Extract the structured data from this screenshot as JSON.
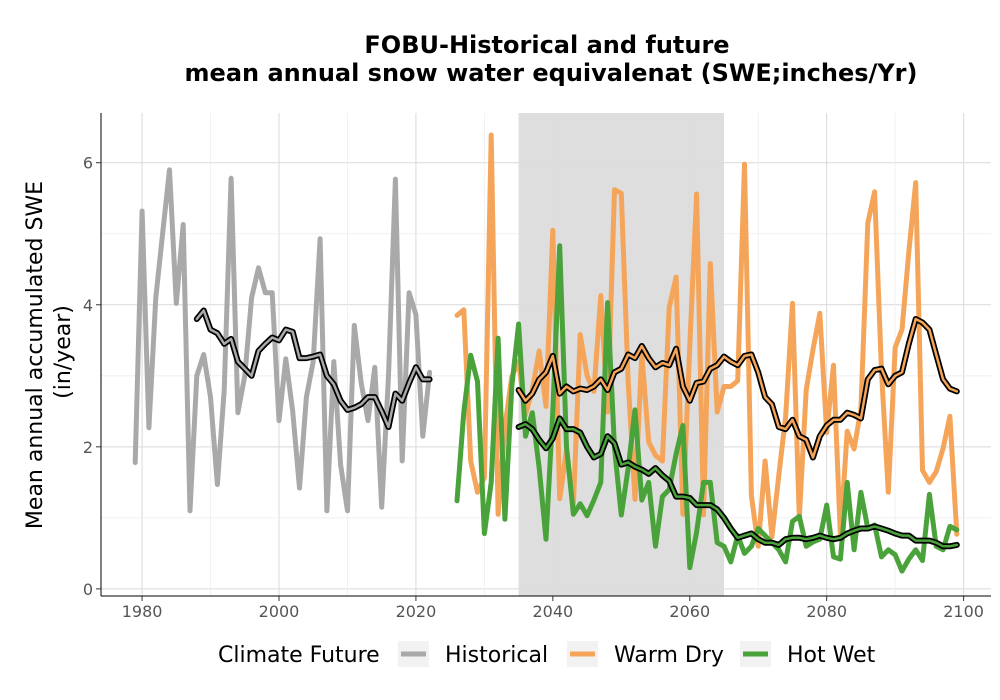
{
  "chart_data": {
    "type": "line",
    "title": [
      "FOBU-Historical and future",
      "mean annual snow water equivalenat (SWE;inches/Yr)"
    ],
    "ylabel": [
      "Mean annual accumulated SWE",
      "(in/year)"
    ],
    "xlabel": "",
    "xlim": [
      1974,
      2104
    ],
    "ylim": [
      -0.1,
      6.7
    ],
    "x_ticks": [
      1980,
      2000,
      2020,
      2040,
      2060,
      2080,
      2100
    ],
    "y_ticks": [
      0,
      2,
      4,
      6
    ],
    "grid": true,
    "shaded_region": {
      "x": [
        2035,
        2065
      ],
      "color": "#dcdcdc"
    },
    "legend": {
      "title": "Climate Future",
      "placement": "bottom",
      "entries": [
        "Historical",
        "Warm Dry",
        "Hot Wet"
      ]
    },
    "series": [
      {
        "name": "Historical",
        "color": "#a9a9a9",
        "x": [
          1979,
          1980,
          1981,
          1982,
          1983,
          1984,
          1985,
          1986,
          1987,
          1988,
          1989,
          1990,
          1991,
          1992,
          1993,
          1994,
          1995,
          1996,
          1997,
          1998,
          1999,
          2000,
          2001,
          2002,
          2003,
          2004,
          2005,
          2006,
          2007,
          2008,
          2009,
          2010,
          2011,
          2012,
          2013,
          2014,
          2015,
          2016,
          2017,
          2018,
          2019,
          2020,
          2021,
          2022
        ],
        "values": [
          1.78,
          5.32,
          2.27,
          4.1,
          5.0,
          5.9,
          4.02,
          5.13,
          1.1,
          3.0,
          3.3,
          2.7,
          1.47,
          2.8,
          5.78,
          2.48,
          3.0,
          4.1,
          4.52,
          4.17,
          4.17,
          2.37,
          3.24,
          2.5,
          1.42,
          2.7,
          3.2,
          4.93,
          1.1,
          3.2,
          1.75,
          1.1,
          3.71,
          2.9,
          2.37,
          3.12,
          1.15,
          3.0,
          5.77,
          1.8,
          4.17,
          3.86,
          2.15,
          3.05
        ]
      },
      {
        "name": "Warm Dry",
        "color": "#f5a55a",
        "x": [
          2026,
          2027,
          2028,
          2029,
          2030,
          2031,
          2032,
          2033,
          2034,
          2035,
          2036,
          2037,
          2038,
          2039,
          2040,
          2041,
          2042,
          2043,
          2044,
          2045,
          2046,
          2047,
          2048,
          2049,
          2050,
          2051,
          2052,
          2053,
          2054,
          2055,
          2056,
          2057,
          2058,
          2059,
          2060,
          2061,
          2062,
          2063,
          2064,
          2065,
          2066,
          2067,
          2068,
          2069,
          2070,
          2071,
          2072,
          2073,
          2074,
          2075,
          2076,
          2077,
          2078,
          2079,
          2080,
          2081,
          2082,
          2083,
          2084,
          2085,
          2086,
          2087,
          2088,
          2089,
          2090,
          2091,
          2092,
          2093,
          2094,
          2095,
          2096,
          2097,
          2098,
          2099
        ],
        "values": [
          3.85,
          3.93,
          1.8,
          1.36,
          1.57,
          6.39,
          1.05,
          2.28,
          2.99,
          3.2,
          2.45,
          2.8,
          3.35,
          2.57,
          5.05,
          1.27,
          1.95,
          1.18,
          3.58,
          3.0,
          2.78,
          4.13,
          2.49,
          5.62,
          5.57,
          2.92,
          1.26,
          3.3,
          2.07,
          1.88,
          1.8,
          3.96,
          4.39,
          1.05,
          3.43,
          5.56,
          1.04,
          4.58,
          2.49,
          2.85,
          2.85,
          2.93,
          5.98,
          1.31,
          0.6,
          1.8,
          0.73,
          1.6,
          2.42,
          4.02,
          1.0,
          2.8,
          3.37,
          3.88,
          2.2,
          3.15,
          0.75,
          2.22,
          1.97,
          2.53,
          5.15,
          5.59,
          3.06,
          1.36,
          3.4,
          3.65,
          4.74,
          5.72,
          1.67,
          1.5,
          1.65,
          1.98,
          2.43,
          0.77
        ]
      },
      {
        "name": "Hot Wet",
        "color": "#4aa23a",
        "x": [
          2026,
          2027,
          2028,
          2029,
          2030,
          2031,
          2032,
          2033,
          2034,
          2035,
          2036,
          2037,
          2038,
          2039,
          2040,
          2041,
          2042,
          2043,
          2044,
          2045,
          2046,
          2047,
          2048,
          2049,
          2050,
          2051,
          2052,
          2053,
          2054,
          2055,
          2056,
          2057,
          2058,
          2059,
          2060,
          2061,
          2062,
          2063,
          2064,
          2065,
          2066,
          2067,
          2068,
          2069,
          2070,
          2071,
          2072,
          2073,
          2074,
          2075,
          2076,
          2077,
          2078,
          2079,
          2080,
          2081,
          2082,
          2083,
          2084,
          2085,
          2086,
          2087,
          2088,
          2089,
          2090,
          2091,
          2092,
          2093,
          2094,
          2095,
          2096,
          2097,
          2098,
          2099
        ],
        "values": [
          1.24,
          2.49,
          3.29,
          2.92,
          0.78,
          1.5,
          3.53,
          0.98,
          2.85,
          3.73,
          2.15,
          2.48,
          1.7,
          0.7,
          2.5,
          4.83,
          2.0,
          1.05,
          1.2,
          1.03,
          1.25,
          1.5,
          4.03,
          1.98,
          1.04,
          1.7,
          2.52,
          1.25,
          1.5,
          0.6,
          1.3,
          1.4,
          1.9,
          2.3,
          0.3,
          0.8,
          1.5,
          1.5,
          0.65,
          0.6,
          0.38,
          0.75,
          0.5,
          0.6,
          0.85,
          0.75,
          0.65,
          0.55,
          0.38,
          0.95,
          1.02,
          0.6,
          0.66,
          0.7,
          1.18,
          0.45,
          0.42,
          1.5,
          0.55,
          1.36,
          0.85,
          0.9,
          0.45,
          0.55,
          0.48,
          0.25,
          0.42,
          0.55,
          0.4,
          1.33,
          0.6,
          0.55,
          0.88,
          0.83
        ]
      }
    ],
    "smoothed_series": [
      {
        "series": "Historical",
        "x": [
          1988,
          1989,
          1990,
          1991,
          1992,
          1993,
          1994,
          1995,
          1996,
          1997,
          1998,
          1999,
          2000,
          2001,
          2002,
          2003,
          2004,
          2005,
          2006,
          2007,
          2008,
          2009,
          2010,
          2011,
          2012,
          2013,
          2014,
          2015,
          2016,
          2017,
          2018,
          2019,
          2020,
          2021,
          2022
        ],
        "values": [
          3.8,
          3.92,
          3.65,
          3.6,
          3.45,
          3.52,
          3.2,
          3.1,
          3.0,
          3.35,
          3.45,
          3.54,
          3.5,
          3.65,
          3.62,
          3.25,
          3.25,
          3.27,
          3.3,
          3.0,
          2.88,
          2.65,
          2.52,
          2.55,
          2.6,
          2.7,
          2.7,
          2.5,
          2.28,
          2.75,
          2.65,
          2.9,
          3.12,
          2.95,
          2.95
        ]
      },
      {
        "series": "Warm Dry",
        "x": [
          2035,
          2036,
          2037,
          2038,
          2039,
          2040,
          2041,
          2042,
          2043,
          2044,
          2045,
          2046,
          2047,
          2048,
          2049,
          2050,
          2051,
          2052,
          2053,
          2054,
          2055,
          2056,
          2057,
          2058,
          2059,
          2060,
          2061,
          2062,
          2063,
          2064,
          2065,
          2066,
          2067,
          2068,
          2069,
          2070,
          2071,
          2072,
          2073,
          2074,
          2075,
          2076,
          2077,
          2078,
          2079,
          2080,
          2081,
          2082,
          2083,
          2084,
          2085,
          2086,
          2087,
          2088,
          2089,
          2090,
          2091,
          2092,
          2093,
          2094,
          2095,
          2096,
          2097,
          2098,
          2099
        ],
        "values": [
          2.8,
          2.65,
          2.75,
          2.95,
          3.05,
          3.28,
          2.75,
          2.85,
          2.78,
          2.82,
          2.8,
          2.85,
          2.95,
          2.8,
          3.05,
          3.1,
          3.3,
          3.25,
          3.42,
          3.25,
          3.12,
          3.18,
          3.15,
          3.38,
          2.85,
          2.65,
          2.9,
          2.92,
          3.1,
          3.15,
          3.27,
          3.2,
          3.15,
          3.28,
          3.3,
          3.05,
          2.7,
          2.6,
          2.28,
          2.25,
          2.38,
          2.15,
          2.1,
          1.85,
          2.15,
          2.3,
          2.38,
          2.38,
          2.48,
          2.45,
          2.4,
          2.95,
          3.08,
          3.1,
          2.88,
          3.0,
          3.05,
          3.45,
          3.8,
          3.75,
          3.65,
          3.3,
          2.95,
          2.82,
          2.78
        ]
      },
      {
        "series": "Hot Wet",
        "x": [
          2035,
          2036,
          2037,
          2038,
          2039,
          2040,
          2041,
          2042,
          2043,
          2044,
          2045,
          2046,
          2047,
          2048,
          2049,
          2050,
          2051,
          2052,
          2053,
          2054,
          2055,
          2056,
          2057,
          2058,
          2059,
          2060,
          2061,
          2062,
          2063,
          2064,
          2065,
          2066,
          2067,
          2068,
          2069,
          2070,
          2071,
          2072,
          2073,
          2074,
          2075,
          2076,
          2077,
          2078,
          2079,
          2080,
          2081,
          2082,
          2083,
          2084,
          2085,
          2086,
          2087,
          2088,
          2089,
          2090,
          2091,
          2092,
          2093,
          2094,
          2095,
          2096,
          2097,
          2098,
          2099
        ],
        "values": [
          2.28,
          2.32,
          2.25,
          2.1,
          1.98,
          2.12,
          2.4,
          2.25,
          2.25,
          2.2,
          2.0,
          1.85,
          1.9,
          2.15,
          2.05,
          1.75,
          1.78,
          1.72,
          1.68,
          1.62,
          1.7,
          1.6,
          1.52,
          1.3,
          1.3,
          1.28,
          1.18,
          1.18,
          1.18,
          1.12,
          1.0,
          0.85,
          0.72,
          0.75,
          0.78,
          0.7,
          0.65,
          0.65,
          0.62,
          0.7,
          0.72,
          0.72,
          0.7,
          0.72,
          0.75,
          0.72,
          0.7,
          0.72,
          0.78,
          0.82,
          0.85,
          0.85,
          0.88,
          0.85,
          0.82,
          0.78,
          0.75,
          0.75,
          0.68,
          0.68,
          0.68,
          0.65,
          0.6,
          0.6,
          0.62
        ]
      }
    ]
  }
}
